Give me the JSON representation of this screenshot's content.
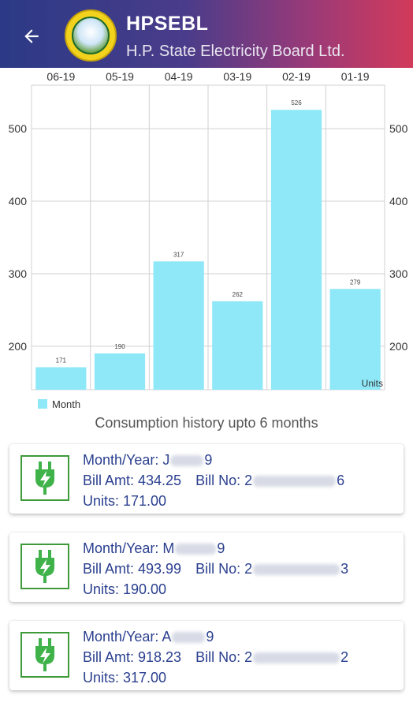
{
  "header": {
    "title": "HPSEBL",
    "subtitle": "H.P. State Electricity Board Ltd.",
    "back_icon": "arrow-left-icon",
    "logo_icon": "hpsebl-logo-icon"
  },
  "chart_data": {
    "type": "bar",
    "categories": [
      "06-19",
      "05-19",
      "04-19",
      "03-19",
      "02-19",
      "01-19"
    ],
    "series": [
      {
        "name": "Month",
        "values": [
          171,
          190,
          317,
          262,
          526,
          279
        ]
      }
    ],
    "ylim": [
      140,
      560
    ],
    "yticks": [
      200,
      300,
      400,
      500
    ],
    "ylabel": "Units",
    "legend_placement": "bottom-left",
    "grid": true,
    "bar_color": "#8ee8f8"
  },
  "caption": "Consumption history upto 6 months",
  "bills": [
    {
      "month_label": "Month/Year: J",
      "month_tail": "9",
      "amount_label": "Bill Amt: 434.25",
      "billno_label": "Bill No: 2",
      "billno_tail": "6",
      "units_label": "Units: 171.00"
    },
    {
      "month_label": "Month/Year: M",
      "month_tail": "9",
      "amount_label": "Bill Amt: 493.99",
      "billno_label": "Bill No: 2",
      "billno_tail": "3",
      "units_label": "Units: 190.00"
    },
    {
      "month_label": "Month/Year: A",
      "month_tail": "9",
      "amount_label": "Bill Amt: 918.23",
      "billno_label": "Bill No: 2",
      "billno_tail": "2",
      "units_label": "Units: 317.00"
    }
  ],
  "colors": {
    "accent_text": "#2a3f8f",
    "icon_green": "#3f9a3a"
  }
}
